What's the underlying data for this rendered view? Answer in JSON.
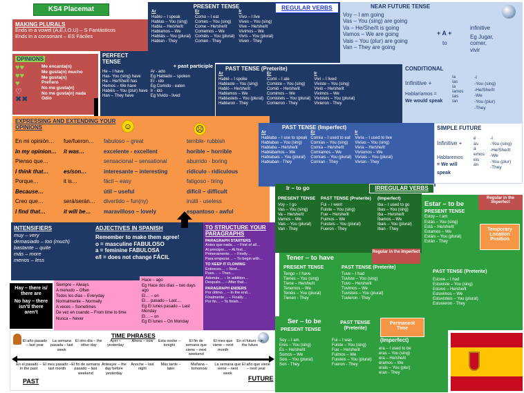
{
  "title": "KS4 Placemat",
  "colors": {
    "green": "#2e9e3e",
    "navy": "#1f3864",
    "orange": "#f79646",
    "pink": "#ff99cc",
    "lightgreen": "#92d050",
    "red": "#c0504d"
  },
  "making_plurals": {
    "title": "MAKING PLURALS",
    "line1": "Ends in a vowel (A,E,I.O.U) – S  Fantásticos",
    "line2": "Ends in a consonant – ES  Fáciles"
  },
  "opinions": {
    "title": "OPINIONS",
    "items": [
      "Me encanta(n)",
      "Me gusta(n) mucho",
      "Me gusta(n)",
      "Prefiero",
      "No me gusta(n)",
      "No me gusta(n) nada",
      "Odio"
    ]
  },
  "perfect_tense": {
    "title": "PERFECT TENSE",
    "subtitle": "+ past participle",
    "haber": [
      "He – I have",
      "Has- You (sing) have",
      "Ha – He/She/it has",
      "Hemos – We have",
      "Habéis – You (plur) have",
      "Han – They have"
    ],
    "participles": [
      "Ar - ado",
      "Eg Hablado – spoken",
      "Er - ido",
      "Eg Comido - eaten",
      "Ir - ido",
      "Eg Vivido - lived"
    ]
  },
  "present_tense": {
    "title": "PRESENT TENSE",
    "ar": [
      "Ar",
      "Hablo – I speak",
      "Hablas – You (sing)",
      "Habla – He/she/it",
      "Hablamos – We",
      "Habláis – You (plural)",
      "Hablan - They"
    ],
    "er": [
      "Er",
      "Como – I eat",
      "Comes – You (sing)",
      "Come – He/she/it",
      "Comemos – We",
      "Coméis – You (plural)",
      "Comen - They"
    ],
    "ir": [
      "Ir",
      "Vivo – I live",
      "Vives – You (sing)",
      "Vive – He/she/it",
      "Vivimos – We",
      "Vivís – You (plural)",
      "Viven - They"
    ]
  },
  "regular_verbs": "REGULAR VERBS",
  "near_future": {
    "title": "NEAR FUTURE TENSE",
    "lines": [
      "Voy – I am going",
      "Vas – You (sing) are going",
      "Va – He/She/It is going",
      "Vamos – We are going",
      "Vais – You (plur) are going",
      "Van – They are going"
    ],
    "plus": "+ A +",
    "to": "to",
    "infinitive": "infinitive",
    "example": [
      "Eg Jugar,",
      "comer,",
      "vivir"
    ]
  },
  "past_preterite": {
    "title": "PAST TENSE (Preterite)",
    "ar": [
      "Ar",
      "Hablé – I spoke",
      "Hablaste – You (sing)",
      "Habló – He/she/it",
      "Hablamos – We",
      "Hablasteis – You (plural)",
      "Hablaron - They"
    ],
    "er": [
      "Er",
      "Comí – I ate",
      "Comiste – You (sing)",
      "Comió – He/she/it",
      "Comimos – We",
      "Comisteis – You (plural)",
      "Comieron - They"
    ],
    "ir": [
      "Ir",
      "Viví – I lived",
      "Viviste – You (sing)",
      "Vivió – He/she/it",
      "Vivimos – We",
      "Vivisteis – You (plural)",
      "Vivieron - They"
    ]
  },
  "conditional": {
    "title": "CONDITIONAL",
    "infinitive": "Infinitive +",
    "endings": [
      "ía",
      "ías",
      "ía",
      "íamos",
      "íais",
      "ían"
    ],
    "meanings": [
      "-I",
      "-You (sing)",
      "-He/She/It",
      "-We",
      "-You (plur)",
      "-They"
    ],
    "example": "Hablaríamos =",
    "example2": "We would speak"
  },
  "expressing": {
    "title": "EXPRESSING AND EXTENDING YOUR OPINIONS",
    "rows": [
      [
        "En mi opinión…",
        "fue/fueron…",
        "fabuloso – great",
        "terrible- rubbish"
      ],
      [
        "In my opinion…",
        "it was…",
        "excelente - excellent",
        "horible – horrible"
      ],
      [
        "Pienso que…",
        "",
        "sensacional – sensational",
        "aburrido - boring"
      ],
      [
        "I think that…",
        "es/son…",
        "interesante – interesting",
        "ridículo - ridiculous"
      ],
      [
        "Porque…",
        "it is…",
        "fácil – easy",
        "fatigoso - tiring"
      ],
      [
        "Because…",
        "",
        "útil – useful",
        "difícil – difficult"
      ],
      [
        "Creo que…",
        "será/serán…",
        "divertido – fun(ny)",
        "inútil - useless"
      ],
      [
        "I find that…",
        "it will be…",
        "maravilloso – lovely",
        "espantoso - awful"
      ]
    ]
  },
  "past_imperfect": {
    "title": "PAST TENSE (Imperfect)",
    "ar": [
      "Ar",
      "Hablaba – I use to speak",
      "Hablabas – You (sing)",
      "Hablaba – He/she/it",
      "Hablábamos – We",
      "Hablabais – You (plural)",
      "Hablaban - They"
    ],
    "er": [
      "Er",
      "Comía – I used to eat",
      "Comías – You (sing)",
      "Comía – He/she/it",
      "Comíamos – We",
      "Comíais – You (plural)",
      "Comían - They"
    ],
    "ir": [
      "Ir",
      "Vivía – I used to live",
      "Vivías – You (sing)",
      "Vivía – He/she/it",
      "Vivíamos – We",
      "Vivíais – You (plural)",
      "Vivían - They"
    ]
  },
  "simple_future": {
    "title": "SIMPLE FUTURE",
    "infinitive": "Infinitive +",
    "endings": [
      "é",
      "ás",
      "á",
      "emos",
      "éis",
      "án"
    ],
    "meanings": [
      "-I",
      "-You (sing)",
      "-He/She/It",
      "-We",
      "-You (plur)",
      "-They"
    ],
    "example": "Hablaremos",
    "example2": "= We will",
    "example3": "speak"
  },
  "ir_to_go": {
    "title": "Ir – to go",
    "irregular": "IRREGULAR VERBS",
    "present_title": "PRESENT TENSE",
    "present": [
      "Voy – I go",
      "Vas – You (sing)",
      "Va – He/she/it",
      "Vamos – We",
      "Vais – You (plural)",
      "Van - They"
    ],
    "preterite_title": "PAST TENSE (Preterite)",
    "preterite": [
      "Fui – I went",
      "Fuiste – You (sing)",
      "Fue – He/she/it",
      "Fuimos – We",
      "Fuisteis – You (plural)",
      "Fueron - They"
    ],
    "imperfect_title": "(Imperfect)",
    "imperfect": [
      "Iba – I used to go",
      "Ibas – You (sing)",
      "Iba – He/she/it",
      "Íbamos – We",
      "Ibais – You (plural)",
      "Iban - They"
    ],
    "regular_note": "Regular in the Imperfect"
  },
  "estar": {
    "title": "Estar – to be",
    "note": "Regular in the Imperfect",
    "present_title": "PRESENT TENSE",
    "present": [
      "Estoy – I am",
      "Estás – You (sing)",
      "Está – He/she/it",
      "Estamos – We",
      "Estáis – You (plural)",
      "Están - They"
    ],
    "temp": "Temporary Location Position",
    "preterite_title": "PAST TENSE (Preterite)",
    "preterite": [
      "Estuve – I had",
      "Estuviste – You (sing)",
      "Estuvo – He/she/it",
      "Estuvimos – We",
      "Estuvisteis – You (plural)",
      "Estuvieron - They"
    ]
  },
  "intensifiers": {
    "title": "INTENSIFIERS",
    "items": [
      "muy – very",
      "demasiado – too (much)",
      "bastante – quite",
      "más – more",
      "menos – less"
    ]
  },
  "adjectives": {
    "title": "ADJECTIVES IN SPANISH",
    "line1": "Remember to make them agree!",
    "line2": "o = masculine   FABULOSO",
    "line3": "a = feminine     FABULOSA",
    "line4": "e/l = does not  change  FÁCIL"
  },
  "structure": {
    "title": "TO STRUCTURE YOUR PARAGRAPHS",
    "sub1": "PARAGRAPH STARTERS",
    "lines1": [
      "Antes que nada… – First of all…",
      "Al principio… – At first…",
      "Primeramente… – Firstly…",
      "Para empezar… – To begin with…"
    ],
    "sub2": "TO KEEP IT FLOWING",
    "lines2": [
      "Entonces… – Next…",
      "Pues… – Then…",
      "Además… – In addition…",
      "Después… – After that…"
    ],
    "sub3": "PARAGRAPH ENDERS",
    "lines3": [
      "Por último… – In the end…",
      "Finalmente… – Finally…",
      "Por fin… – To finish…"
    ]
  },
  "tener": {
    "title": "Tener – to have",
    "present_title": "PRESENT TENSE",
    "present": [
      "Tengo – I have",
      "Tienes – You (sing)",
      "Tiene – He/she/it",
      "Tenemos – We",
      "Tenéis – You (plural)",
      "Tienen - They"
    ],
    "preterite_title": "PAST TENSE (Preterite)",
    "preterite": [
      "Tuve – I had",
      "Tuviste – You (sing)",
      "Tuvo – He/she/it",
      "Tuvimos – We",
      "Tuvisteis – You (plural)",
      "Tuvieron - They"
    ],
    "regular_note": "Regular in the Imperfect"
  },
  "hay": {
    "lines": [
      "Hay – there is/ there are",
      "No hay – there isn’t/ there aren’t"
    ]
  },
  "frequency": {
    "items": [
      "Siempre – Always",
      "A menudo – Often",
      "Todos los días – Everyday",
      "Normalmente – Normally",
      "A veces – Sometimes",
      "De vez en cuando – From time to time",
      "Nunca – Never"
    ]
  },
  "hace": {
    "items": [
      "Hace – ago",
      "Eg Hace dos días – two days ago",
      "El… – on",
      "El… pasado – Last…",
      "Eg El lunes pasado – Last Monday",
      "El… – on",
      "Eg El lunes – On Monday"
    ]
  },
  "time_phrases": {
    "title": "TIME PHRASES",
    "top": [
      "El año pasado – last year",
      "La semana pasada – last week",
      "El otro día – the other day",
      "Ayer – yesterday",
      "Ahora – now",
      "Esta noche – tonight",
      "El fin de semana que viene – next weekend",
      "El mes que viene – next month",
      "En el futuro – in the future"
    ],
    "bottom": [
      "En el pasado – in the past",
      "El mes pasado – last month",
      "El fin de semana pasado – last weekend",
      "Anteayer – the day before yesterday",
      "Anoche – last night",
      "Más tarde – later",
      "Mañana – tomorrow",
      "La semana que viene – next week",
      "El año que viene – next year"
    ],
    "past": "PAST",
    "future": "FUTURE"
  },
  "ser": {
    "title": "Ser – to be",
    "permanent": "Permanent Time",
    "present_title": "PRESENT TENSE",
    "present": [
      "Soy – I am",
      "Eres – You (sing)",
      "Es – He/she/it",
      "Somos – We",
      "Sois – You (plural)",
      "Son - They"
    ],
    "preterite_title": "PAST TENSE (Preterite)",
    "preterite": [
      "Fui – I was",
      "Fuiste – You (sing)",
      "Fue – He/she/it",
      "Fuimos – We",
      "Fuisteis – You (plural)",
      "Fueron - They"
    ],
    "imperfect_title": "(Imperfect)",
    "imperfect": [
      "era – I used to be",
      "eras – You (sing)",
      "era – He/she/it",
      "éramos – We",
      "erais – You (plur)",
      "eran - They"
    ]
  }
}
